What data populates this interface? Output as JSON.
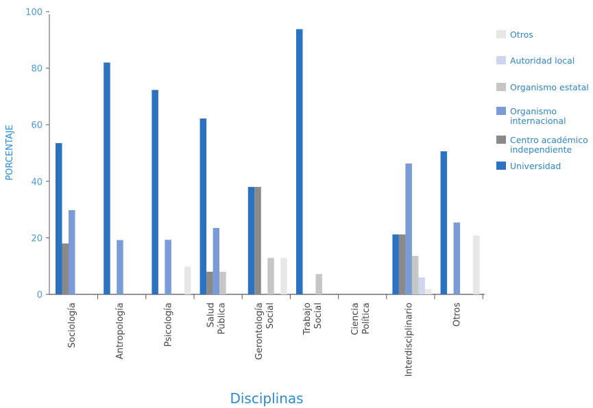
{
  "chart_data": {
    "type": "bar",
    "xlabel": "Disciplinas",
    "ylabel": "PORCENTAJE",
    "ylim": [
      0,
      100
    ],
    "yticks": [
      0,
      20,
      40,
      60,
      80,
      100
    ],
    "categories": [
      [
        "Sociología"
      ],
      [
        "Antropología"
      ],
      [
        "Psicología"
      ],
      [
        "Salud",
        "Pública"
      ],
      [
        "Gerontología",
        "Social"
      ],
      [
        "Trabajo",
        "Social"
      ],
      [
        "Ciencia",
        "Política"
      ],
      [
        "Interdisciplinario"
      ],
      [
        "Otros"
      ]
    ],
    "series": [
      {
        "name": "Universidad",
        "color": "#2b73c2",
        "values": [
          53.5,
          82,
          72.3,
          62.2,
          38,
          93.8,
          0,
          21.2,
          50.6
        ]
      },
      {
        "name": "Centro académico independiente",
        "color": "#8a8a8a",
        "values": [
          18,
          0,
          0,
          8,
          38,
          0,
          0,
          21.2,
          0
        ]
      },
      {
        "name": "Organismo internacional",
        "color": "#7a9bd6",
        "values": [
          29.8,
          19.2,
          19.3,
          23.5,
          0,
          0,
          0,
          46.3,
          25.4
        ]
      },
      {
        "name": "Organismo estatal",
        "color": "#c6c6c6",
        "values": [
          0,
          0,
          0,
          8,
          12.9,
          7.2,
          0,
          13.6,
          0
        ]
      },
      {
        "name": "Autoridad local",
        "color": "#cdd7ee",
        "values": [
          0,
          0,
          0,
          0,
          0,
          0,
          0,
          6,
          0
        ]
      },
      {
        "name": "Otros",
        "color": "#e7e7e7",
        "values": [
          0,
          0,
          9.8,
          0,
          12.9,
          0,
          0,
          1.8,
          20.9
        ]
      }
    ],
    "legend_position": "right",
    "legend_order": [
      "Otros",
      "Autoridad local",
      "Organismo estatal",
      "Organismo internacional",
      "Centro académico independiente",
      "Universidad"
    ],
    "legend_labels": {
      "Otros": [
        "Otros"
      ],
      "Autoridad local": [
        "Autoridad local"
      ],
      "Organismo estatal": [
        "Organismo estatal"
      ],
      "Organismo internacional": [
        "Organismo",
        "internacional"
      ],
      "Centro académico independiente": [
        "Centro académico",
        "independiente"
      ],
      "Universidad": [
        "Universidad"
      ]
    },
    "grid": false
  }
}
